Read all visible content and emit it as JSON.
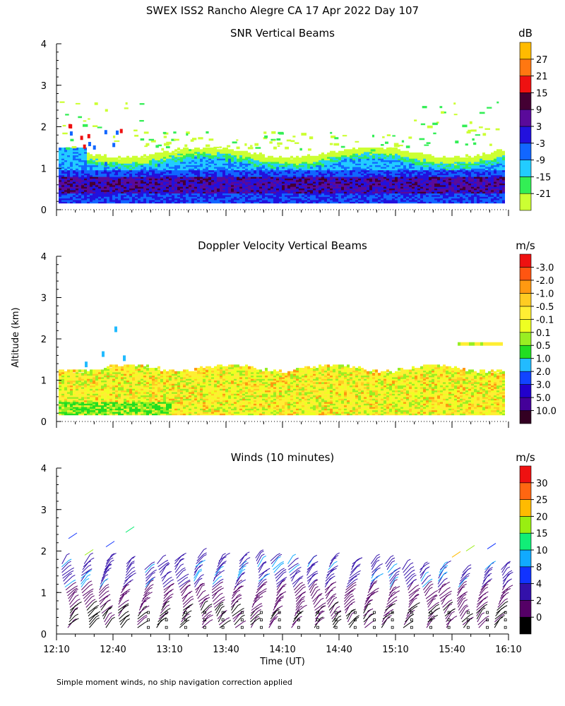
{
  "title": "SWEX ISS2 Rancho Alegre CA  17 Apr 2022 Day 107",
  "ylabel": "Altitude (km)",
  "xlabel": "Time (UT)",
  "footnote": "Simple moment winds, no ship navigation correction applied",
  "panel_titles": [
    "SNR Vertical Beams",
    "Doppler Velocity Vertical Beams",
    "Winds (10 minutes)"
  ],
  "colorbar_units": [
    "dB",
    "m/s",
    "m/s"
  ],
  "chart_data": [
    {
      "type": "heatmap",
      "title": "SNR Vertical Beams",
      "units": "dB",
      "xlim": [
        12.1667,
        16.1667
      ],
      "ylim": [
        0,
        4
      ],
      "yticks": [
        "0",
        "1",
        "2",
        "3",
        "4"
      ],
      "xticks": [
        "12:10",
        "12:40",
        "13:10",
        "13:40",
        "14:10",
        "14:40",
        "15:10",
        "15:40",
        "16:10"
      ],
      "colorbar_levels": [
        "-21",
        "-15",
        "-9",
        "-3",
        "3",
        "9",
        "15",
        "21",
        "27"
      ],
      "colorbar_colors": [
        "#ccff33",
        "#33ee55",
        "#22ccff",
        "#1166ff",
        "#2211dd",
        "#5a0a9a",
        "#440033",
        "#ee1111",
        "#ff7711",
        "#ffbb00"
      ],
      "layers": [
        {
          "level": "-21",
          "altitude_km": [
            0.15,
            1.5
          ]
        },
        {
          "level": "-9",
          "altitude_km": [
            0.15,
            1.2
          ]
        },
        {
          "level": "-3",
          "altitude_km": [
            0.15,
            1.1
          ]
        },
        {
          "level": "3",
          "altitude_km": [
            0.15,
            0.9
          ]
        },
        {
          "level": "9",
          "altitude_km": [
            0.4,
            0.7
          ]
        }
      ]
    },
    {
      "type": "heatmap",
      "title": "Doppler Velocity Vertical Beams",
      "units": "m/s",
      "xlim": [
        12.1667,
        16.1667
      ],
      "ylim": [
        0,
        4
      ],
      "yticks": [
        "0",
        "1",
        "2",
        "3",
        "4"
      ],
      "xticks": [
        "12:10",
        "12:40",
        "13:10",
        "13:40",
        "14:10",
        "14:40",
        "15:10",
        "15:40",
        "16:10"
      ],
      "colorbar_levels": [
        "10.0",
        "5.0",
        "3.0",
        "2.0",
        "1.0",
        "0.5",
        "0.1",
        "-0.1",
        "-0.5",
        "-1.0",
        "-2.0",
        "-3.0"
      ],
      "colorbar_colors": [
        "#330022",
        "#440099",
        "#2200cc",
        "#1144ff",
        "#22bbff",
        "#22dd22",
        "#99ee22",
        "#eeff22",
        "#ffee33",
        "#ffcc22",
        "#ff9911",
        "#ff5511",
        "#ee1111"
      ],
      "layers": [
        {
          "level": "-0.5",
          "altitude_km": [
            0.15,
            1.3
          ]
        },
        {
          "level": "0.1",
          "altitude_km": [
            0.15,
            0.6
          ]
        }
      ]
    },
    {
      "type": "wind_barbs",
      "title": "Winds (10 minutes)",
      "units": "m/s",
      "xlim": [
        12.1667,
        16.1667
      ],
      "ylim": [
        0,
        4
      ],
      "yticks": [
        "0",
        "1",
        "2",
        "3",
        "4"
      ],
      "xticks": [
        "12:10",
        "12:40",
        "13:10",
        "13:40",
        "14:10",
        "14:40",
        "15:10",
        "15:40",
        "16:10"
      ],
      "colorbar_levels": [
        "0",
        "2",
        "4",
        "8",
        "10",
        "15",
        "20",
        "25",
        "30"
      ],
      "colorbar_colors": [
        "#000000",
        "#550066",
        "#3311aa",
        "#1133ff",
        "#11aaff",
        "#11ee77",
        "#99ee11",
        "#ffbb00",
        "#ff6611",
        "#ee1111"
      ],
      "profile_times_h": [
        12.25,
        12.42,
        12.58,
        12.75,
        12.92,
        13.08,
        13.25,
        13.42,
        13.58,
        13.75,
        13.92,
        14.08,
        14.25,
        14.42,
        14.58,
        14.75,
        14.92,
        15.08,
        15.25,
        15.42,
        15.58,
        15.75,
        15.92,
        16.08
      ],
      "profile_top_km": [
        1.7,
        1.7,
        1.8,
        1.7,
        1.6,
        1.7,
        1.8,
        1.9,
        1.8,
        1.8,
        1.9,
        1.8,
        1.7,
        1.7,
        1.8,
        1.7,
        1.7,
        1.7,
        1.6,
        1.6,
        1.6,
        1.5,
        1.6,
        1.6
      ]
    }
  ]
}
